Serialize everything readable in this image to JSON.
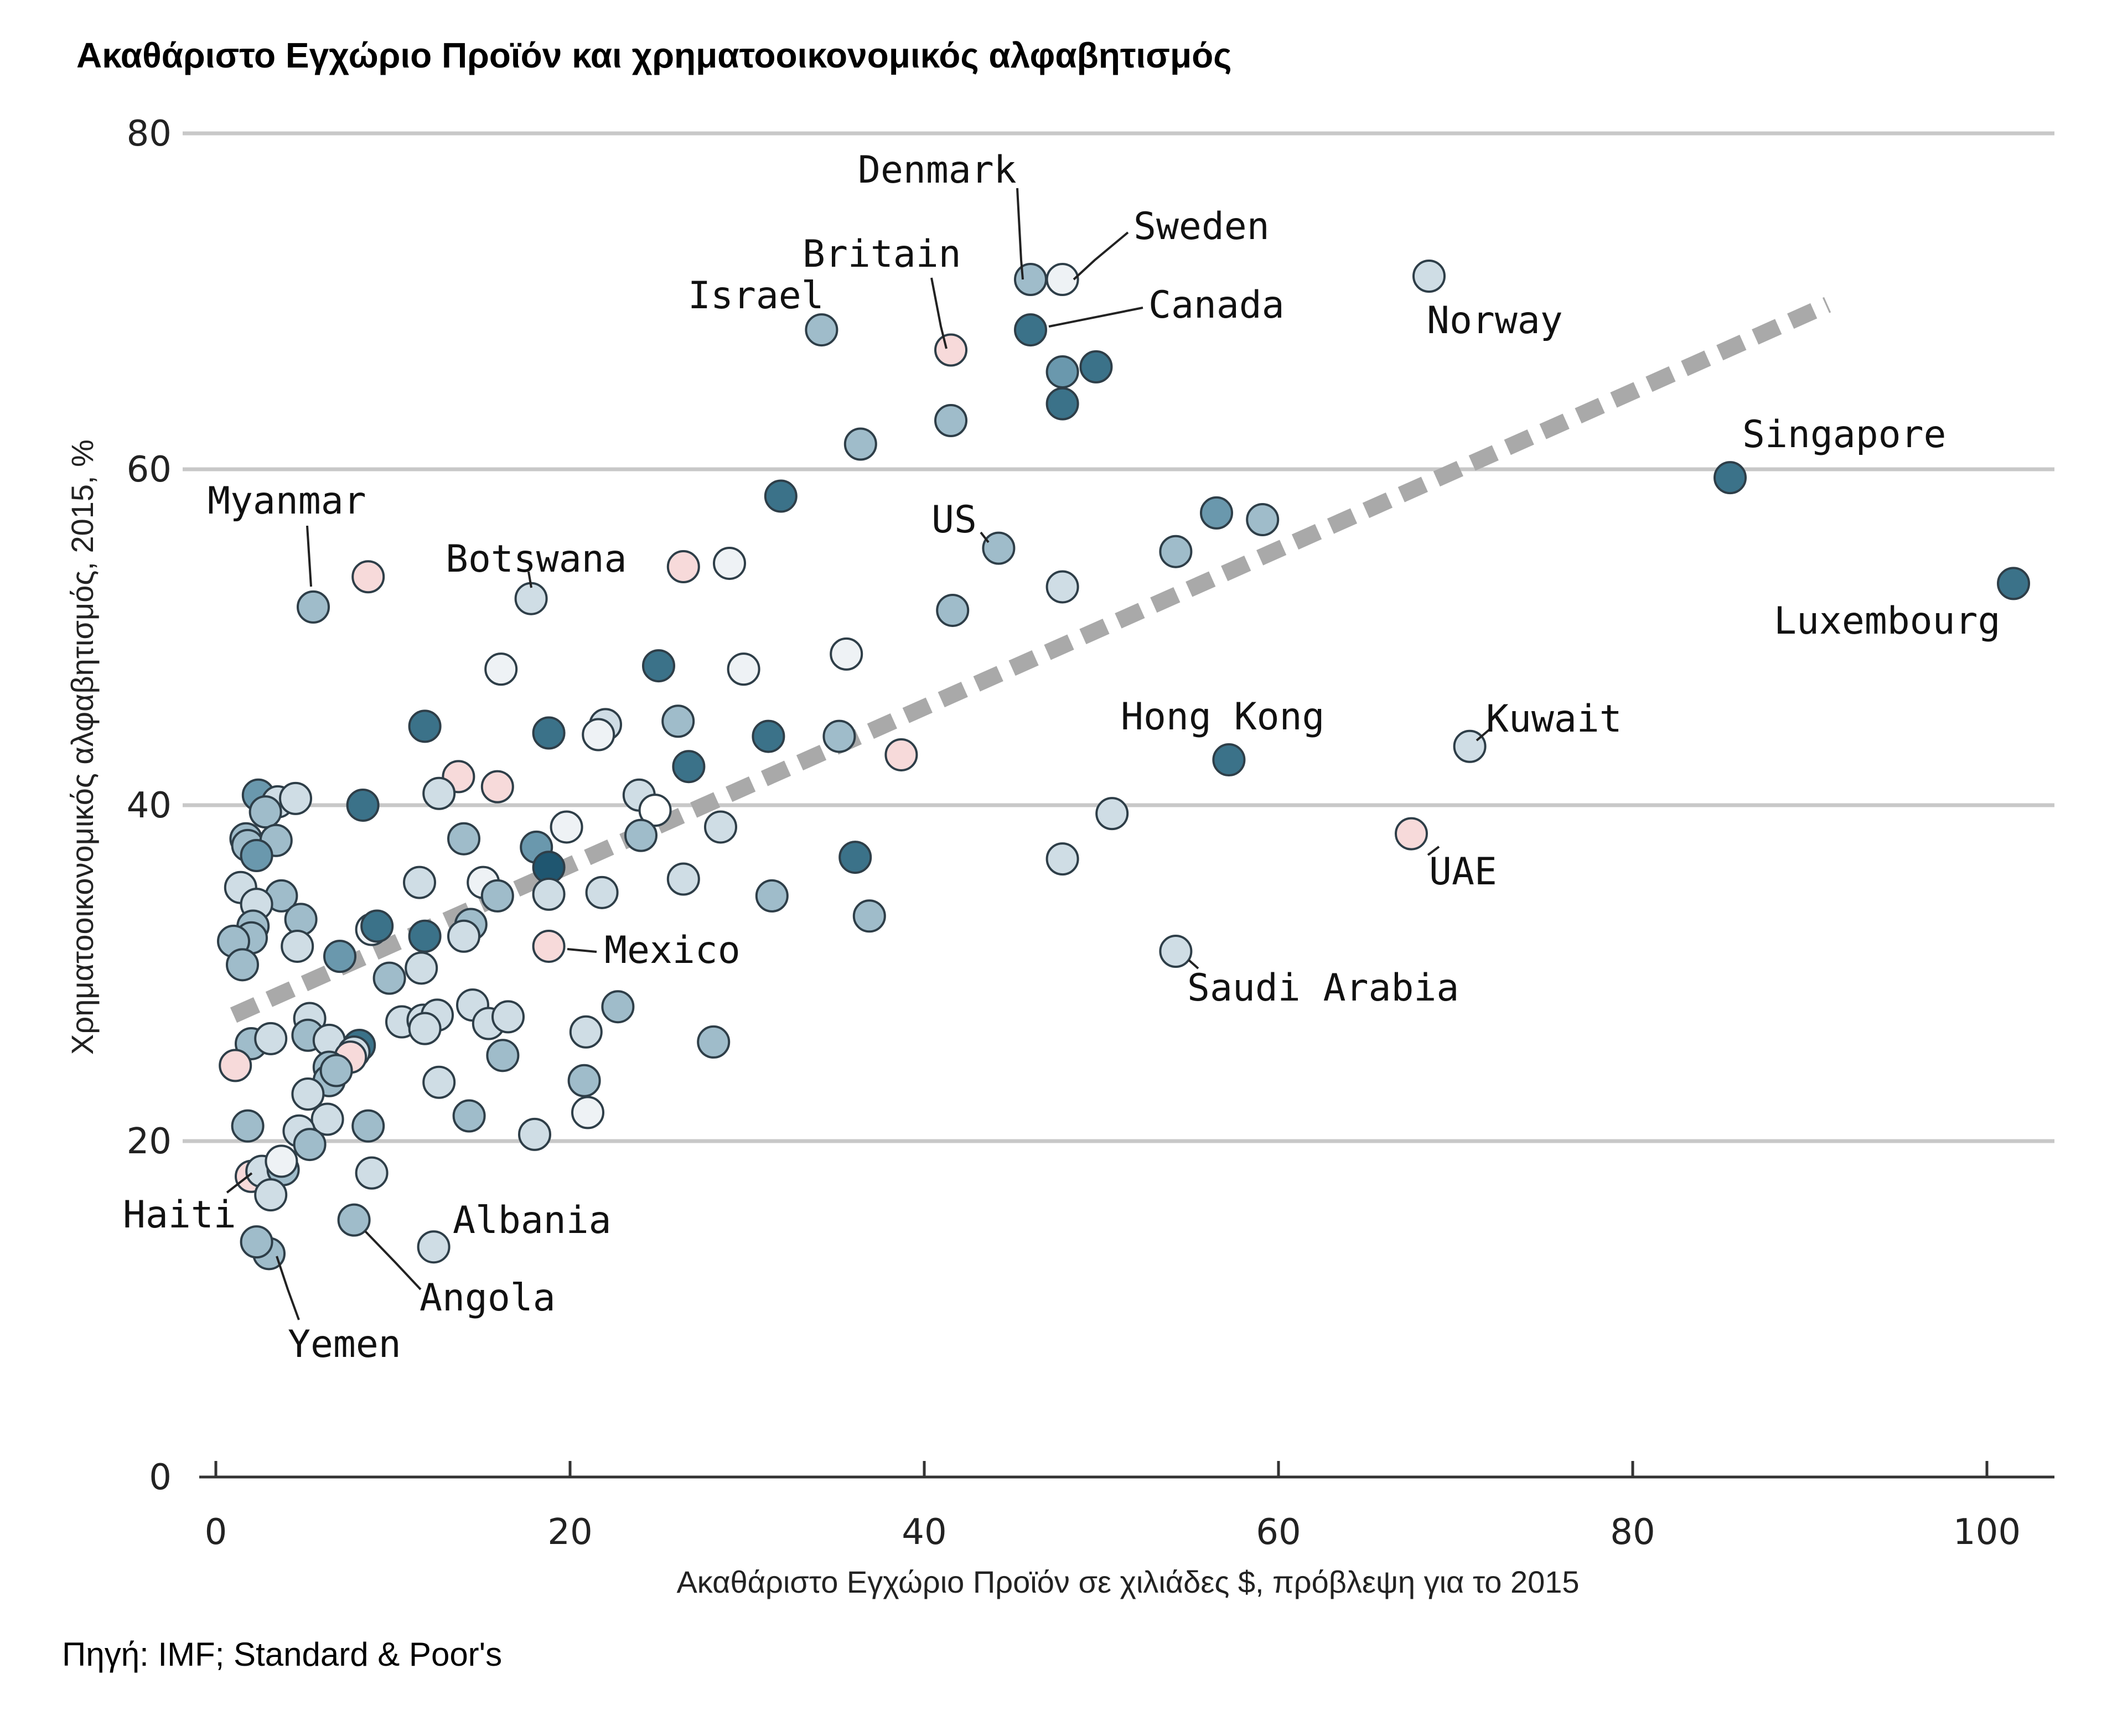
{
  "chart_data": {
    "type": "scatter",
    "title": "Ακαθάριστο Εγχώριο Προϊόν και χρηματοοικονομικός αλφαβητισμός",
    "xlabel": "Ακαθάριστο Εγχώριο Προϊόν σε χιλιάδες $, πρόβλεψη για το 2015",
    "ylabel": "Χρηματοοικονομικός αλφαβητισμός, 2015, %",
    "source": "Πηγή: IMF; Standard & Poor's",
    "xlim": [
      0,
      103
    ],
    "ylim": [
      0,
      80
    ],
    "x_ticks": [
      "0",
      "20",
      "40",
      "60",
      "80",
      "100"
    ],
    "y_ticks": [
      "0",
      "20",
      "40",
      "60",
      "80"
    ],
    "grid": true,
    "colors": {
      "palest": "#eef2f5",
      "pale": "#cfdde5",
      "mid": "#9fbcca",
      "medium": "#6a98ad",
      "dark": "#3b7289",
      "darkest": "#1f5670",
      "pink": "#f7dada",
      "trend": "#a9a9a9"
    },
    "trendline": {
      "x": [
        1,
        91
      ],
      "y": [
        27.5,
        69.8
      ]
    },
    "labeled_points": [
      {
        "label": "Denmark",
        "x": 46,
        "y": 71.3,
        "shade": "mid"
      },
      {
        "label": "Sweden",
        "x": 47.8,
        "y": 71.3,
        "shade": "palest"
      },
      {
        "label": "Canada",
        "x": 46,
        "y": 68.3,
        "shade": "dark"
      },
      {
        "label": "Britain",
        "x": 41.5,
        "y": 67.1,
        "shade": "pink"
      },
      {
        "label": "Israel",
        "x": 34.2,
        "y": 68.3,
        "shade": "mid"
      },
      {
        "label": "Norway",
        "x": 68.5,
        "y": 71.5,
        "shade": "pale"
      },
      {
        "label": "Singapore",
        "x": 85.5,
        "y": 59.5,
        "shade": "dark"
      },
      {
        "label": "Luxembourg",
        "x": 101.5,
        "y": 53.2,
        "shade": "dark"
      },
      {
        "label": "US",
        "x": 44.2,
        "y": 55.3,
        "shade": "mid"
      },
      {
        "label": "Myanmar",
        "x": 5.5,
        "y": 51.8,
        "shade": "mid"
      },
      {
        "label": "Botswana",
        "x": 17.8,
        "y": 52.3,
        "shade": "pale"
      },
      {
        "label": "Hong Kong",
        "x": 57.2,
        "y": 42.7,
        "shade": "dark"
      },
      {
        "label": "Kuwait",
        "x": 70.8,
        "y": 43.5,
        "shade": "pale"
      },
      {
        "label": "UAE",
        "x": 67.5,
        "y": 38.3,
        "shade": "pink"
      },
      {
        "label": "Saudi Arabia",
        "x": 54.2,
        "y": 31.3,
        "shade": "pale"
      },
      {
        "label": "Mexico",
        "x": 18.8,
        "y": 31.6,
        "shade": "pink"
      },
      {
        "label": "Haiti",
        "x": 2,
        "y": 17.9,
        "shade": "pink"
      },
      {
        "label": "Albania",
        "x": 12.3,
        "y": 13.7,
        "shade": "pale"
      },
      {
        "label": "Angola",
        "x": 7.8,
        "y": 15.3,
        "shade": "mid"
      },
      {
        "label": "Yemen",
        "x": 3,
        "y": 13.3,
        "shade": "mid"
      }
    ],
    "points": [
      {
        "x": 46,
        "y": 71.3,
        "shade": "mid"
      },
      {
        "x": 47.8,
        "y": 71.3,
        "shade": "palest"
      },
      {
        "x": 46,
        "y": 68.3,
        "shade": "dark"
      },
      {
        "x": 41.5,
        "y": 67.1,
        "shade": "pink"
      },
      {
        "x": 34.2,
        "y": 68.3,
        "shade": "mid"
      },
      {
        "x": 68.5,
        "y": 71.5,
        "shade": "pale"
      },
      {
        "x": 85.5,
        "y": 59.5,
        "shade": "dark"
      },
      {
        "x": 101.5,
        "y": 53.2,
        "shade": "dark"
      },
      {
        "x": 44.2,
        "y": 55.3,
        "shade": "mid"
      },
      {
        "x": 5.5,
        "y": 51.8,
        "shade": "mid"
      },
      {
        "x": 17.8,
        "y": 52.3,
        "shade": "pale"
      },
      {
        "x": 57.2,
        "y": 42.7,
        "shade": "dark"
      },
      {
        "x": 70.8,
        "y": 43.5,
        "shade": "pale"
      },
      {
        "x": 67.5,
        "y": 38.3,
        "shade": "pink"
      },
      {
        "x": 54.2,
        "y": 31.3,
        "shade": "pale"
      },
      {
        "x": 18.8,
        "y": 31.6,
        "shade": "pink"
      },
      {
        "x": 2,
        "y": 17.9,
        "shade": "pink"
      },
      {
        "x": 12.3,
        "y": 13.7,
        "shade": "pale"
      },
      {
        "x": 7.8,
        "y": 15.3,
        "shade": "mid"
      },
      {
        "x": 3,
        "y": 13.3,
        "shade": "mid"
      },
      {
        "x": 47.8,
        "y": 65.8,
        "shade": "medium"
      },
      {
        "x": 49.7,
        "y": 66.1,
        "shade": "dark"
      },
      {
        "x": 47.8,
        "y": 63.9,
        "shade": "dark"
      },
      {
        "x": 41.5,
        "y": 62.9,
        "shade": "mid"
      },
      {
        "x": 36.4,
        "y": 61.5,
        "shade": "mid"
      },
      {
        "x": 31.9,
        "y": 58.4,
        "shade": "dark"
      },
      {
        "x": 56.5,
        "y": 57.4,
        "shade": "medium"
      },
      {
        "x": 59.1,
        "y": 57.0,
        "shade": "mid"
      },
      {
        "x": 54.2,
        "y": 55.1,
        "shade": "mid"
      },
      {
        "x": 47.8,
        "y": 53.0,
        "shade": "pale"
      },
      {
        "x": 41.6,
        "y": 51.6,
        "shade": "mid"
      },
      {
        "x": 8.6,
        "y": 53.6,
        "shade": "pink"
      },
      {
        "x": 26.4,
        "y": 54.2,
        "shade": "pink"
      },
      {
        "x": 29.0,
        "y": 54.4,
        "shade": "palest"
      },
      {
        "x": 16.1,
        "y": 48.1,
        "shade": "palest"
      },
      {
        "x": 25.0,
        "y": 48.3,
        "shade": "dark"
      },
      {
        "x": 29.8,
        "y": 48.1,
        "shade": "palest"
      },
      {
        "x": 35.6,
        "y": 49.0,
        "shade": "palest"
      },
      {
        "x": 11.8,
        "y": 44.7,
        "shade": "dark"
      },
      {
        "x": 18.8,
        "y": 44.3,
        "shade": "dark"
      },
      {
        "x": 22.0,
        "y": 44.8,
        "shade": "pale"
      },
      {
        "x": 21.6,
        "y": 44.2,
        "shade": "palest"
      },
      {
        "x": 26.1,
        "y": 45.0,
        "shade": "mid"
      },
      {
        "x": 31.2,
        "y": 44.1,
        "shade": "dark"
      },
      {
        "x": 35.2,
        "y": 44.1,
        "shade": "mid"
      },
      {
        "x": 38.7,
        "y": 43.0,
        "shade": "pink"
      },
      {
        "x": 26.7,
        "y": 42.3,
        "shade": "dark"
      },
      {
        "x": 13.7,
        "y": 41.7,
        "shade": "pink"
      },
      {
        "x": 15.9,
        "y": 41.1,
        "shade": "pink"
      },
      {
        "x": 12.6,
        "y": 40.7,
        "shade": "pale"
      },
      {
        "x": 2.4,
        "y": 40.6,
        "shade": "medium"
      },
      {
        "x": 3.5,
        "y": 40.2,
        "shade": "pale"
      },
      {
        "x": 4.5,
        "y": 40.4,
        "shade": "pale"
      },
      {
        "x": 8.3,
        "y": 40.0,
        "shade": "dark"
      },
      {
        "x": 2.8,
        "y": 39.6,
        "shade": "mid"
      },
      {
        "x": 23.9,
        "y": 40.6,
        "shade": "pale"
      },
      {
        "x": 24.8,
        "y": 39.7,
        "shade": "white"
      },
      {
        "x": 50.6,
        "y": 39.5,
        "shade": "pale"
      },
      {
        "x": 1.7,
        "y": 38.0,
        "shade": "mid"
      },
      {
        "x": 1.8,
        "y": 37.6,
        "shade": "mid"
      },
      {
        "x": 3.4,
        "y": 37.9,
        "shade": "mid"
      },
      {
        "x": 2.3,
        "y": 37.0,
        "shade": "medium"
      },
      {
        "x": 14.0,
        "y": 38.0,
        "shade": "mid"
      },
      {
        "x": 19.8,
        "y": 38.7,
        "shade": "palest"
      },
      {
        "x": 24.0,
        "y": 38.2,
        "shade": "mid"
      },
      {
        "x": 28.5,
        "y": 38.7,
        "shade": "pale"
      },
      {
        "x": 18.1,
        "y": 37.5,
        "shade": "medium"
      },
      {
        "x": 18.8,
        "y": 36.3,
        "shade": "darkest"
      },
      {
        "x": 36.1,
        "y": 36.9,
        "shade": "dark"
      },
      {
        "x": 47.8,
        "y": 36.8,
        "shade": "pale"
      },
      {
        "x": 1.4,
        "y": 35.1,
        "shade": "pale"
      },
      {
        "x": 3.7,
        "y": 34.6,
        "shade": "mid"
      },
      {
        "x": 2.3,
        "y": 34.1,
        "shade": "pale"
      },
      {
        "x": 11.5,
        "y": 35.4,
        "shade": "pale"
      },
      {
        "x": 15.1,
        "y": 35.4,
        "shade": "palest"
      },
      {
        "x": 15.9,
        "y": 34.6,
        "shade": "mid"
      },
      {
        "x": 18.8,
        "y": 34.7,
        "shade": "pale"
      },
      {
        "x": 21.8,
        "y": 34.8,
        "shade": "pale"
      },
      {
        "x": 26.4,
        "y": 35.6,
        "shade": "pale"
      },
      {
        "x": 31.4,
        "y": 34.6,
        "shade": "mid"
      },
      {
        "x": 36.9,
        "y": 33.4,
        "shade": "mid"
      },
      {
        "x": 4.8,
        "y": 33.2,
        "shade": "mid"
      },
      {
        "x": 2.1,
        "y": 32.8,
        "shade": "mid"
      },
      {
        "x": 2.0,
        "y": 32.1,
        "shade": "mid"
      },
      {
        "x": 1.0,
        "y": 31.9,
        "shade": "mid"
      },
      {
        "x": 4.6,
        "y": 31.6,
        "shade": "pale"
      },
      {
        "x": 8.8,
        "y": 32.6,
        "shade": "palest"
      },
      {
        "x": 9.1,
        "y": 32.8,
        "shade": "dark"
      },
      {
        "x": 11.8,
        "y": 32.2,
        "shade": "dark"
      },
      {
        "x": 14.4,
        "y": 32.9,
        "shade": "mid"
      },
      {
        "x": 14.0,
        "y": 32.2,
        "shade": "pale"
      },
      {
        "x": 1.5,
        "y": 30.5,
        "shade": "mid"
      },
      {
        "x": 7.0,
        "y": 31.0,
        "shade": "medium"
      },
      {
        "x": 11.6,
        "y": 30.3,
        "shade": "pale"
      },
      {
        "x": 9.8,
        "y": 29.7,
        "shade": "mid"
      },
      {
        "x": 5.3,
        "y": 27.3,
        "shade": "pale"
      },
      {
        "x": 10.5,
        "y": 27.1,
        "shade": "pale"
      },
      {
        "x": 11.7,
        "y": 27.2,
        "shade": "pale"
      },
      {
        "x": 12.5,
        "y": 27.5,
        "shade": "pale"
      },
      {
        "x": 14.5,
        "y": 28.1,
        "shade": "pale"
      },
      {
        "x": 15.4,
        "y": 27.0,
        "shade": "pale"
      },
      {
        "x": 16.5,
        "y": 27.4,
        "shade": "pale"
      },
      {
        "x": 22.7,
        "y": 28.0,
        "shade": "mid"
      },
      {
        "x": 11.8,
        "y": 26.7,
        "shade": "pale"
      },
      {
        "x": 20.9,
        "y": 26.5,
        "shade": "pale"
      },
      {
        "x": 2.0,
        "y": 25.8,
        "shade": "mid"
      },
      {
        "x": 3.1,
        "y": 26.1,
        "shade": "pale"
      },
      {
        "x": 5.2,
        "y": 26.3,
        "shade": "mid"
      },
      {
        "x": 6.4,
        "y": 26.0,
        "shade": "pale"
      },
      {
        "x": 8.1,
        "y": 25.7,
        "shade": "dark"
      },
      {
        "x": 7.8,
        "y": 25.3,
        "shade": "pale"
      },
      {
        "x": 7.6,
        "y": 25.0,
        "shade": "pink"
      },
      {
        "x": 16.2,
        "y": 25.1,
        "shade": "mid"
      },
      {
        "x": 28.1,
        "y": 25.9,
        "shade": "mid"
      },
      {
        "x": 1.1,
        "y": 24.5,
        "shade": "pink"
      },
      {
        "x": 6.4,
        "y": 24.4,
        "shade": "mid"
      },
      {
        "x": 6.4,
        "y": 23.6,
        "shade": "mid"
      },
      {
        "x": 6.8,
        "y": 24.2,
        "shade": "mid"
      },
      {
        "x": 12.6,
        "y": 23.5,
        "shade": "pale"
      },
      {
        "x": 20.8,
        "y": 23.6,
        "shade": "mid"
      },
      {
        "x": 5.2,
        "y": 22.8,
        "shade": "pale"
      },
      {
        "x": 6.3,
        "y": 21.3,
        "shade": "pale"
      },
      {
        "x": 21.0,
        "y": 21.7,
        "shade": "palest"
      },
      {
        "x": 14.3,
        "y": 21.5,
        "shade": "mid"
      },
      {
        "x": 1.8,
        "y": 20.9,
        "shade": "mid"
      },
      {
        "x": 8.6,
        "y": 20.9,
        "shade": "mid"
      },
      {
        "x": 4.7,
        "y": 20.6,
        "shade": "pale"
      },
      {
        "x": 5.3,
        "y": 19.8,
        "shade": "mid"
      },
      {
        "x": 18.0,
        "y": 20.4,
        "shade": "pale"
      },
      {
        "x": 2.6,
        "y": 18.2,
        "shade": "pale"
      },
      {
        "x": 3.8,
        "y": 18.3,
        "shade": "mid"
      },
      {
        "x": 3.7,
        "y": 18.8,
        "shade": "palest"
      },
      {
        "x": 8.8,
        "y": 18.1,
        "shade": "pale"
      },
      {
        "x": 3.1,
        "y": 16.8,
        "shade": "pale"
      },
      {
        "x": 2.3,
        "y": 14.0,
        "shade": "mid"
      }
    ]
  }
}
